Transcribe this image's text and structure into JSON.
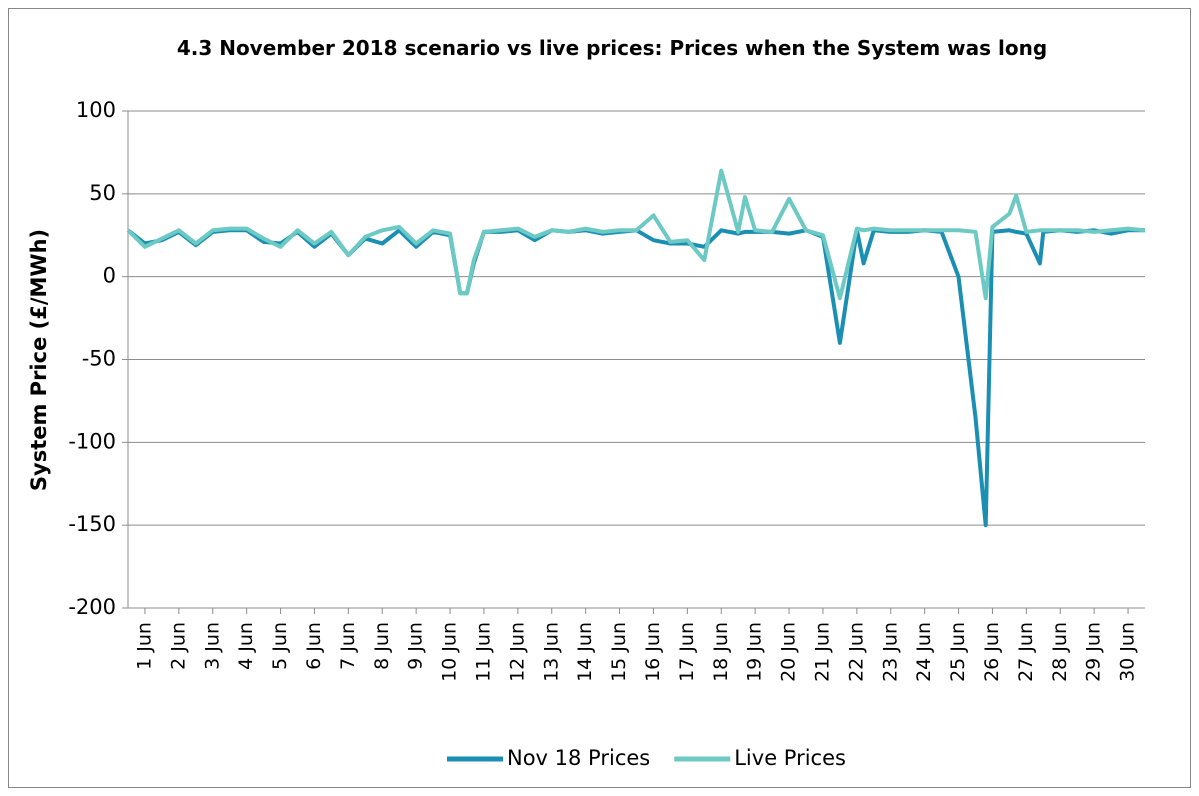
{
  "chart_data": {
    "type": "line",
    "title": "4.3 November 2018 scenario vs live prices: Prices when the System was long",
    "y_label": "System Price (£/MWh)",
    "x": [
      0.5,
      1,
      1.5,
      2,
      2.5,
      3,
      3.5,
      4,
      4.5,
      5,
      5.5,
      6,
      6.5,
      7,
      7.5,
      8,
      8.5,
      9,
      9.5,
      10,
      10.3,
      10.5,
      10.7,
      11,
      11.5,
      12,
      12.5,
      13,
      13.5,
      14,
      14.5,
      15,
      15.5,
      16,
      16.5,
      17,
      17.5,
      18,
      18.5,
      18.7,
      19,
      19.5,
      20,
      20.5,
      21,
      21.5,
      22,
      22.2,
      22.5,
      23,
      23.5,
      24,
      24.5,
      25,
      25.5,
      25.8,
      26,
      26.5,
      26.7,
      27,
      27.4,
      27.5,
      28,
      28.5,
      29,
      29.5,
      30,
      30.5
    ],
    "series": [
      {
        "name": "Nov 18 Prices",
        "color": "#1a8fb3",
        "values": [
          28,
          20,
          22,
          27,
          19,
          27,
          28,
          28,
          21,
          20,
          27,
          18,
          26,
          13,
          23,
          20,
          28,
          18,
          27,
          25,
          -10,
          -10,
          8,
          27,
          27,
          28,
          22,
          28,
          27,
          28,
          26,
          27,
          28,
          22,
          20,
          20,
          18,
          28,
          26,
          27,
          27,
          27,
          26,
          28,
          24,
          -40,
          28,
          8,
          28,
          27,
          27,
          28,
          27,
          0,
          -85,
          -150,
          27,
          28,
          27,
          26,
          8,
          27,
          28,
          27,
          28,
          26,
          28,
          28
        ]
      },
      {
        "name": "Live Prices",
        "color": "#6cc9c3",
        "values": [
          28,
          18,
          23,
          28,
          20,
          28,
          29,
          29,
          23,
          18,
          28,
          20,
          27,
          13,
          24,
          28,
          30,
          20,
          28,
          26,
          -10,
          -10,
          10,
          27,
          28,
          29,
          24,
          28,
          27,
          29,
          27,
          28,
          28,
          37,
          21,
          22,
          10,
          64,
          27,
          48,
          28,
          27,
          47,
          28,
          25,
          -13,
          29,
          28,
          29,
          28,
          28,
          28,
          28,
          28,
          27,
          -13,
          30,
          38,
          49,
          27,
          28,
          28,
          28,
          28,
          27,
          28,
          29,
          28
        ]
      }
    ],
    "xlim": [
      0.5,
      30.5
    ],
    "xticks": [
      {
        "value": 1,
        "label": "1 Jun"
      },
      {
        "value": 2,
        "label": "2 Jun"
      },
      {
        "value": 3,
        "label": "3 Jun"
      },
      {
        "value": 4,
        "label": "4 Jun"
      },
      {
        "value": 5,
        "label": "5 Jun"
      },
      {
        "value": 6,
        "label": "6 Jun"
      },
      {
        "value": 7,
        "label": "7 Jun"
      },
      {
        "value": 8,
        "label": "8 Jun"
      },
      {
        "value": 9,
        "label": "9 Jun"
      },
      {
        "value": 10,
        "label": "10 Jun"
      },
      {
        "value": 11,
        "label": "11 Jun"
      },
      {
        "value": 12,
        "label": "12 Jun"
      },
      {
        "value": 13,
        "label": "13 Jun"
      },
      {
        "value": 14,
        "label": "14 Jun"
      },
      {
        "value": 15,
        "label": "15 Jun"
      },
      {
        "value": 16,
        "label": "16 Jun"
      },
      {
        "value": 17,
        "label": "17 Jun"
      },
      {
        "value": 18,
        "label": "18 Jun"
      },
      {
        "value": 19,
        "label": "19 Jun"
      },
      {
        "value": 20,
        "label": "20 Jun"
      },
      {
        "value": 21,
        "label": "21 Jun"
      },
      {
        "value": 22,
        "label": "22 Jun"
      },
      {
        "value": 23,
        "label": "23 Jun"
      },
      {
        "value": 24,
        "label": "24 Jun"
      },
      {
        "value": 25,
        "label": "25 Jun"
      },
      {
        "value": 26,
        "label": "26 Jun"
      },
      {
        "value": 27,
        "label": "27 Jun"
      },
      {
        "value": 28,
        "label": "28 Jun"
      },
      {
        "value": 29,
        "label": "29 Jun"
      },
      {
        "value": 30,
        "label": "30 Jun"
      }
    ],
    "ylim": [
      -200,
      100
    ],
    "yticks": [
      -200,
      -150,
      -100,
      -50,
      0,
      50,
      100
    ],
    "grid": true,
    "legend": "bottom"
  }
}
